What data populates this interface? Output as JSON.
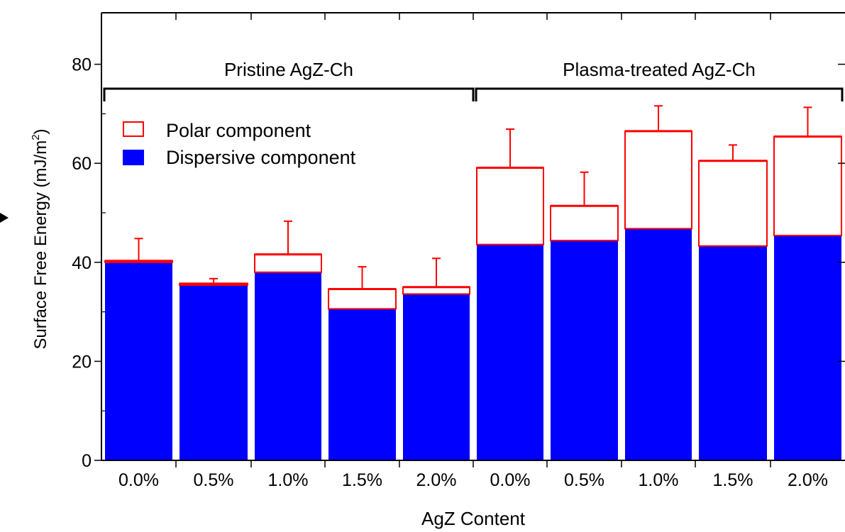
{
  "chart_data": {
    "type": "bar",
    "stacked": true,
    "categories": [
      "0.0%",
      "0.5%",
      "1.0%",
      "1.5%",
      "2.0%",
      "0.0%",
      "0.5%",
      "1.0%",
      "1.5%",
      "2.0%"
    ],
    "series": [
      {
        "name": "Dispersive component",
        "color": "#0000ff",
        "values": [
          40.0,
          35.4,
          38.0,
          30.6,
          33.6,
          43.6,
          44.4,
          46.8,
          43.3,
          45.4
        ]
      },
      {
        "name": "Polar component",
        "color": "#ff0000",
        "values": [
          0.3,
          0.3,
          3.6,
          4.0,
          1.4,
          15.5,
          7.0,
          19.7,
          17.2,
          20.0
        ]
      }
    ],
    "error_bars_upper": [
      44.8,
      36.7,
      48.3,
      39.1,
      40.8,
      66.9,
      58.2,
      71.6,
      63.7,
      71.3
    ],
    "groups": [
      {
        "label": "Pristine AgZ-Ch",
        "from": 0,
        "to": 4
      },
      {
        "label": "Plasma-treated AgZ-Ch",
        "from": 5,
        "to": 9
      }
    ],
    "xlabel": "AgZ Content",
    "ylabel": "Surface Free Energy (mJ/m",
    "ylabel_sup": "2",
    "ylabel_tail": ")",
    "yticks": [
      0,
      20,
      40,
      60,
      80
    ],
    "ylim": [
      0,
      90
    ],
    "legend_position": "top-left",
    "grid": false
  }
}
